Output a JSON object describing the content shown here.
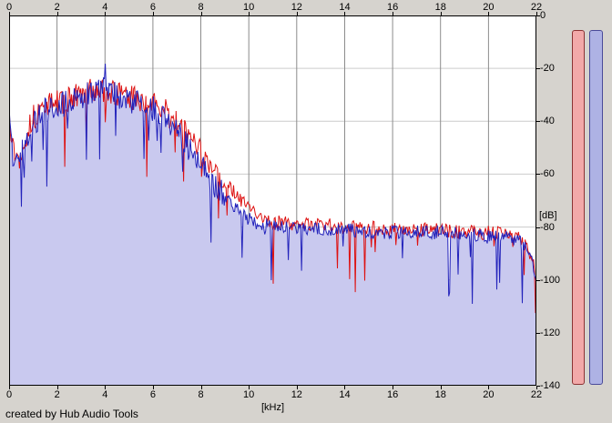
{
  "app": {
    "credit": "created by Hub Audio Tools"
  },
  "axes": {
    "x": {
      "unit_label": "[kHz]",
      "min": 0,
      "max": 22,
      "ticks": [
        0,
        2,
        4,
        6,
        8,
        10,
        12,
        14,
        16,
        18,
        20,
        22
      ]
    },
    "y": {
      "unit_label": "[dB]",
      "min": -140,
      "max": 0,
      "ticks": [
        0,
        -20,
        -40,
        -60,
        -80,
        -100,
        -120,
        -140
      ]
    }
  },
  "colors": {
    "frame_bg": "#d6d3ce",
    "plot_bg": "#ffffff",
    "vgrid": "#8c8c8c",
    "hgrid": "#cccccc",
    "border": "#000000"
  },
  "meters": [
    {
      "name": "red-channel-meter",
      "fill": "#f2a9a9",
      "border": "#8b3333"
    },
    {
      "name": "blue-channel-meter",
      "fill": "#aeb2e4",
      "border": "#4a4a99"
    }
  ],
  "chart_data": {
    "type": "line",
    "title": "",
    "xlabel": "[kHz]",
    "ylabel": "[dB]",
    "xlim": [
      0,
      22
    ],
    "ylim": [
      -140,
      0
    ],
    "grid": true,
    "legend": "none",
    "series": [
      {
        "name": "red-trace",
        "color": "#dd1111",
        "envelope_khz": [
          0,
          0.15,
          0.4,
          0.7,
          1.0,
          1.5,
          2.0,
          2.5,
          3.0,
          3.5,
          4.0,
          4.5,
          5.0,
          5.5,
          6.0,
          6.5,
          7.0,
          7.5,
          8.0,
          8.5,
          9.0,
          9.5,
          10.0,
          10.5,
          11.0,
          12.0,
          13.0,
          14.0,
          15.0,
          16.0,
          17.0,
          18.0,
          19.0,
          20.0,
          21.0,
          21.5,
          22.0
        ],
        "envelope_db": [
          -34,
          -50,
          -55,
          -45,
          -39,
          -34,
          -33,
          -32,
          -30,
          -28,
          -28,
          -30,
          -31,
          -32,
          -34,
          -36,
          -41,
          -46,
          -52,
          -58,
          -63,
          -68,
          -73,
          -76,
          -78,
          -79,
          -79,
          -80,
          -80,
          -81,
          -81,
          -81,
          -82,
          -82,
          -83,
          -85,
          -96
        ]
      },
      {
        "name": "blue-trace",
        "color": "#2222bb",
        "fill": "#c9c9ef",
        "envelope_khz": [
          0,
          0.15,
          0.4,
          0.7,
          1.0,
          1.5,
          2.0,
          2.5,
          3.0,
          3.5,
          3.9,
          4.0,
          4.1,
          4.5,
          5.0,
          5.5,
          6.0,
          6.5,
          7.0,
          7.5,
          8.0,
          8.5,
          9.0,
          9.5,
          10.0,
          10.5,
          11.0,
          12.0,
          13.0,
          14.0,
          15.0,
          16.0,
          17.0,
          18.0,
          19.0,
          20.0,
          21.0,
          21.5,
          21.8,
          22.0
        ],
        "envelope_db": [
          -36,
          -52,
          -57,
          -47,
          -41,
          -36,
          -34,
          -33,
          -31,
          -29,
          -26,
          -21,
          -27,
          -30,
          -32,
          -33,
          -35,
          -38,
          -44,
          -50,
          -57,
          -63,
          -68,
          -73,
          -77,
          -79,
          -80,
          -80,
          -81,
          -81,
          -82,
          -82,
          -82,
          -82,
          -83,
          -83,
          -84,
          -87,
          -92,
          -102
        ]
      }
    ],
    "noise": {
      "samples": 560,
      "jitter_low_db": 5,
      "jitter_high_db": 2.6,
      "jitter_split_khz": 9,
      "dip_probability": 0.05,
      "dip_depth_db": 26,
      "seeds": [
        13,
        47
      ]
    }
  }
}
